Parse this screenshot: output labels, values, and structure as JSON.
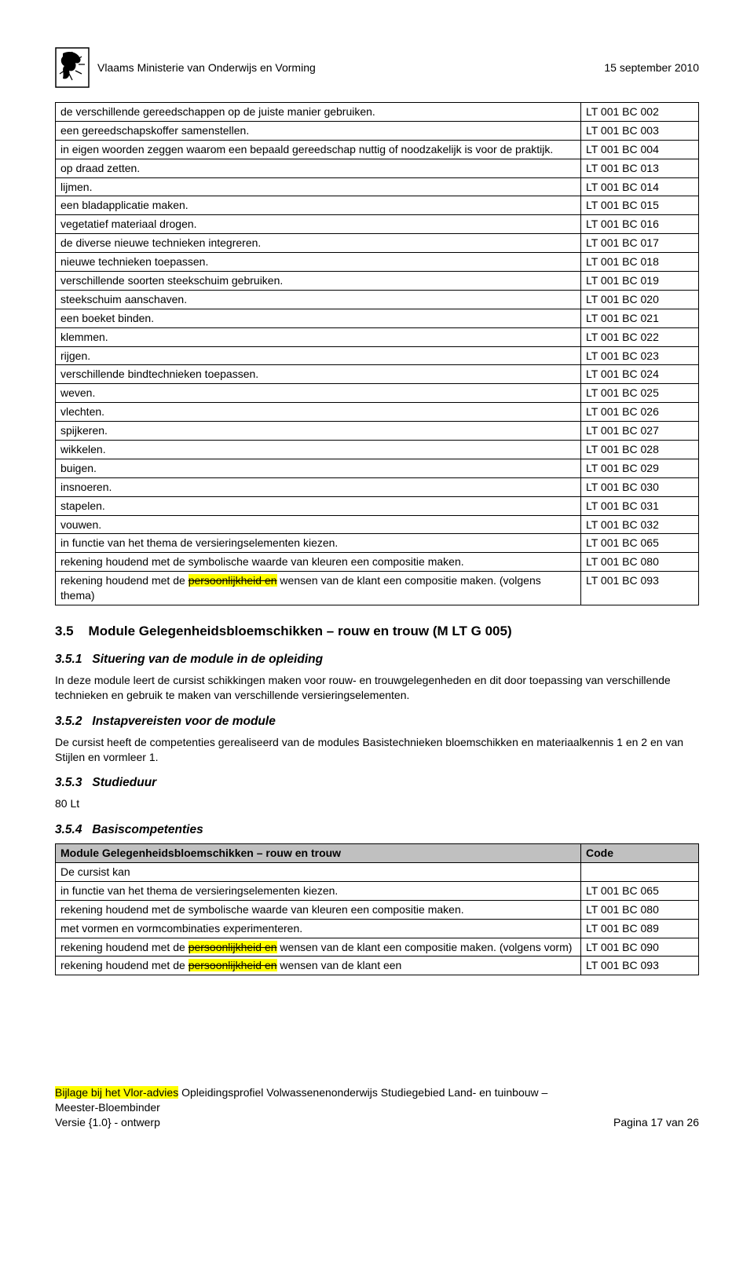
{
  "header": {
    "title": "Vlaams Ministerie van Onderwijs en Vorming",
    "date": "15 september 2010"
  },
  "table1": {
    "rows": [
      {
        "text": "de verschillende gereedschappen op de juiste manier gebruiken.",
        "code": "LT 001 BC 002"
      },
      {
        "text": "een gereedschapskoffer samenstellen.",
        "code": "LT 001 BC 003"
      },
      {
        "text": "in eigen woorden zeggen waarom een bepaald gereedschap nuttig of noodzakelijk is voor de praktijk.",
        "code": "LT 001 BC 004"
      },
      {
        "text": "op draad zetten.",
        "code": "LT 001 BC 013"
      },
      {
        "text": "lijmen.",
        "code": "LT 001 BC 014"
      },
      {
        "text": "een bladapplicatie maken.",
        "code": "LT 001 BC 015"
      },
      {
        "text": "vegetatief materiaal drogen.",
        "code": "LT 001 BC 016"
      },
      {
        "text": "de diverse nieuwe technieken integreren.",
        "code": "LT 001 BC 017"
      },
      {
        "text": "nieuwe technieken toepassen.",
        "code": "LT 001 BC 018"
      },
      {
        "text": "verschillende soorten steekschuim gebruiken.",
        "code": "LT 001 BC 019"
      },
      {
        "text": "steekschuim aanschaven.",
        "code": "LT 001 BC 020"
      },
      {
        "text": "een boeket binden.",
        "code": "LT 001 BC 021"
      },
      {
        "text": "klemmen.",
        "code": "LT 001 BC 022"
      },
      {
        "text": "rijgen.",
        "code": "LT 001 BC 023"
      },
      {
        "text": "verschillende bindtechnieken toepassen.",
        "code": "LT 001 BC 024"
      },
      {
        "text": "weven.",
        "code": "LT 001 BC 025"
      },
      {
        "text": "vlechten.",
        "code": "LT 001 BC 026"
      },
      {
        "text": "spijkeren.",
        "code": "LT 001 BC 027"
      },
      {
        "text": "wikkelen.",
        "code": "LT 001 BC 028"
      },
      {
        "text": "buigen.",
        "code": "LT 001 BC 029"
      },
      {
        "text": "insnoeren.",
        "code": "LT 001 BC 030"
      },
      {
        "text": "stapelen.",
        "code": "LT 001 BC 031"
      },
      {
        "text": "vouwen.",
        "code": "LT 001 BC 032"
      },
      {
        "text": "in functie van het thema de versieringselementen kiezen.",
        "code": "LT 001 BC 065"
      },
      {
        "text": "rekening houdend met de symbolische waarde van kleuren een compositie maken.",
        "code": "LT 001 BC 080"
      },
      {
        "segments": [
          {
            "t": "rekening houdend met de "
          },
          {
            "t": "persoonlijkheid en",
            "strike": true,
            "hl": true
          },
          {
            "t": " wensen van de klant een compositie maken. (volgens thema)"
          }
        ],
        "code": "LT 001 BC 093"
      }
    ]
  },
  "section": {
    "num": "3.5",
    "title": "Module Gelegenheidsbloemschikken – rouw en trouw (M LT G 005)",
    "s1": {
      "num": "3.5.1",
      "title": "Situering van de module in de opleiding",
      "body": "In deze module leert de cursist schikkingen maken voor rouw- en trouwgelegenheden en dit door toepassing van verschillende technieken en gebruik te maken van verschillende versieringselementen."
    },
    "s2": {
      "num": "3.5.2",
      "title": "Instapvereisten voor de module",
      "body": "De cursist heeft de competenties gerealiseerd van de modules Basistechnieken bloemschikken en materiaalkennis 1 en 2 en van Stijlen en vormleer 1."
    },
    "s3": {
      "num": "3.5.3",
      "title": "Studieduur",
      "body": "80 Lt"
    },
    "s4": {
      "num": "3.5.4",
      "title": "Basiscompetenties"
    }
  },
  "table2": {
    "header": {
      "left": "Module Gelegenheidsbloemschikken – rouw en trouw",
      "right": "Code"
    },
    "rows": [
      {
        "text": "De cursist kan"
      },
      {
        "text": "in functie van het thema de versieringselementen kiezen.",
        "code": "LT 001 BC 065"
      },
      {
        "text": "rekening houdend met de symbolische waarde van kleuren een compositie maken.",
        "code": "LT 001 BC 080"
      },
      {
        "text": "met vormen en vormcombinaties experimenteren.",
        "code": "LT 001 BC 089"
      },
      {
        "segments": [
          {
            "t": "rekening houdend met de "
          },
          {
            "t": "persoonlijkheid en",
            "strike": true,
            "hl": true
          },
          {
            "t": " wensen van de klant een compositie maken. (volgens vorm)"
          }
        ],
        "code": "LT 001 BC 090"
      },
      {
        "segments": [
          {
            "t": "rekening houdend met de "
          },
          {
            "t": "persoonlijkheid en",
            "strike": true,
            "hl": true
          },
          {
            "t": " wensen van de klant een"
          }
        ],
        "code": "LT 001 BC 093"
      }
    ]
  },
  "footer": {
    "line1_pre": "Bijlage bij het Vlor-advies",
    "line1_rest": " Opleidingsprofiel Volwassenenonderwijs Studiegebied Land- en tuinbouw –",
    "line2": "Meester-Bloembinder",
    "line3_left": "Versie {1.0} - ontwerp",
    "line3_right": "Pagina 17 van 26"
  }
}
